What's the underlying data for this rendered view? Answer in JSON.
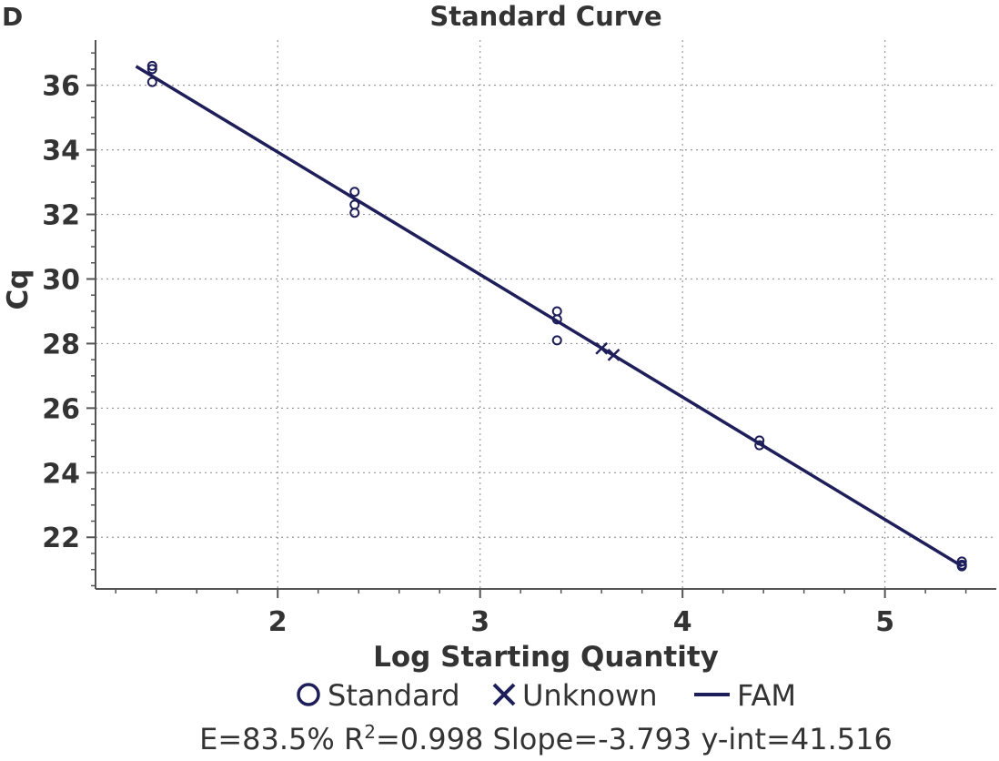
{
  "panel_label": "D",
  "chart_data": {
    "type": "scatter",
    "title": "Standard Curve",
    "xlabel": "Log Starting Quantity",
    "ylabel": "Cq",
    "xlim": [
      1.1,
      5.55
    ],
    "ylim": [
      20.4,
      37.4
    ],
    "x_ticks": [
      "2",
      "3",
      "4",
      "5"
    ],
    "x_tick_values": [
      2,
      3,
      4,
      5
    ],
    "y_ticks": [
      "22",
      "24",
      "26",
      "28",
      "30",
      "32",
      "34",
      "36"
    ],
    "y_tick_values": [
      22,
      24,
      26,
      28,
      30,
      32,
      34,
      36
    ],
    "grid": true,
    "series": [
      {
        "name": "Standard",
        "marker": "circle",
        "points": [
          [
            1.38,
            36.6
          ],
          [
            1.38,
            36.5
          ],
          [
            1.38,
            36.1
          ],
          [
            2.38,
            32.7
          ],
          [
            2.38,
            32.3
          ],
          [
            2.38,
            32.05
          ],
          [
            3.38,
            29.0
          ],
          [
            3.38,
            28.75
          ],
          [
            3.38,
            28.1
          ],
          [
            4.38,
            25.0
          ],
          [
            4.38,
            24.85
          ],
          [
            5.38,
            21.25
          ],
          [
            5.38,
            21.15
          ],
          [
            5.38,
            21.1
          ]
        ]
      },
      {
        "name": "Unknown",
        "marker": "x",
        "points": [
          [
            3.6,
            27.85
          ],
          [
            3.66,
            27.65
          ]
        ]
      },
      {
        "name": "FAM",
        "marker": "line",
        "fit": {
          "slope": -3.793,
          "intercept": 41.516,
          "x_range": [
            1.3,
            5.38
          ]
        }
      }
    ],
    "legend": [
      "Standard",
      "Unknown",
      "FAM"
    ],
    "legend_position": "bottom",
    "stats": {
      "efficiency_text": "E=83.5%",
      "r2_prefix": "R",
      "r2_sup": "2",
      "r2_value": "=0.998",
      "slope_text": "Slope=-3.793",
      "yint_text": "y-int=41.516"
    },
    "colors": {
      "series": "#1e1e5a",
      "grid": "#9a9a9a",
      "axis": "#555555",
      "text": "#333333"
    }
  }
}
